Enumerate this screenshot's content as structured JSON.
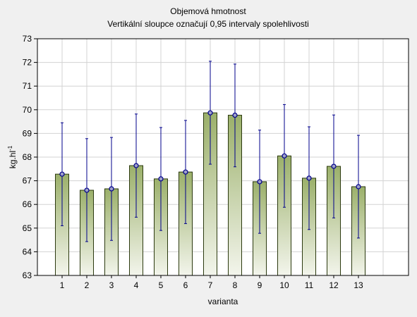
{
  "chart_data": {
    "type": "bar",
    "title": "Objemová hmotnost",
    "subtitle": "Vertikální sloupce označují 0,95 intervaly spolehlivosti",
    "xlabel": "varianta",
    "ylabel": "kg.hl-1",
    "ylabel_main": "kg.hl",
    "ylabel_sup": "-1",
    "categories": [
      "1",
      "2",
      "3",
      "4",
      "5",
      "6",
      "7",
      "8",
      "9",
      "10",
      "11",
      "12",
      "13"
    ],
    "values": [
      67.28,
      66.6,
      66.66,
      67.64,
      67.08,
      67.37,
      69.87,
      69.77,
      66.96,
      68.05,
      67.11,
      67.61,
      66.75
    ],
    "ci_upper": [
      69.45,
      68.78,
      68.83,
      69.82,
      69.25,
      69.55,
      72.05,
      71.93,
      69.14,
      70.22,
      69.28,
      69.78,
      68.92
    ],
    "ci_lower": [
      65.1,
      64.43,
      64.48,
      65.46,
      64.9,
      65.19,
      67.7,
      67.59,
      64.78,
      65.88,
      64.94,
      65.43,
      64.58
    ],
    "ylim": [
      63,
      73
    ],
    "yticks": [
      63,
      64,
      65,
      66,
      67,
      68,
      69,
      70,
      71,
      72,
      73
    ],
    "grid": true,
    "colors": {
      "bar_top": "#9bb06a",
      "bar_bottom": "#f3f5ec",
      "bar_stroke": "#2c3a10",
      "error": "#00008b",
      "point_fill": "#9ea0c8",
      "grid": "#d3d3d3",
      "plot_bg": "#ffffff",
      "background": "#f0f0f0"
    }
  }
}
